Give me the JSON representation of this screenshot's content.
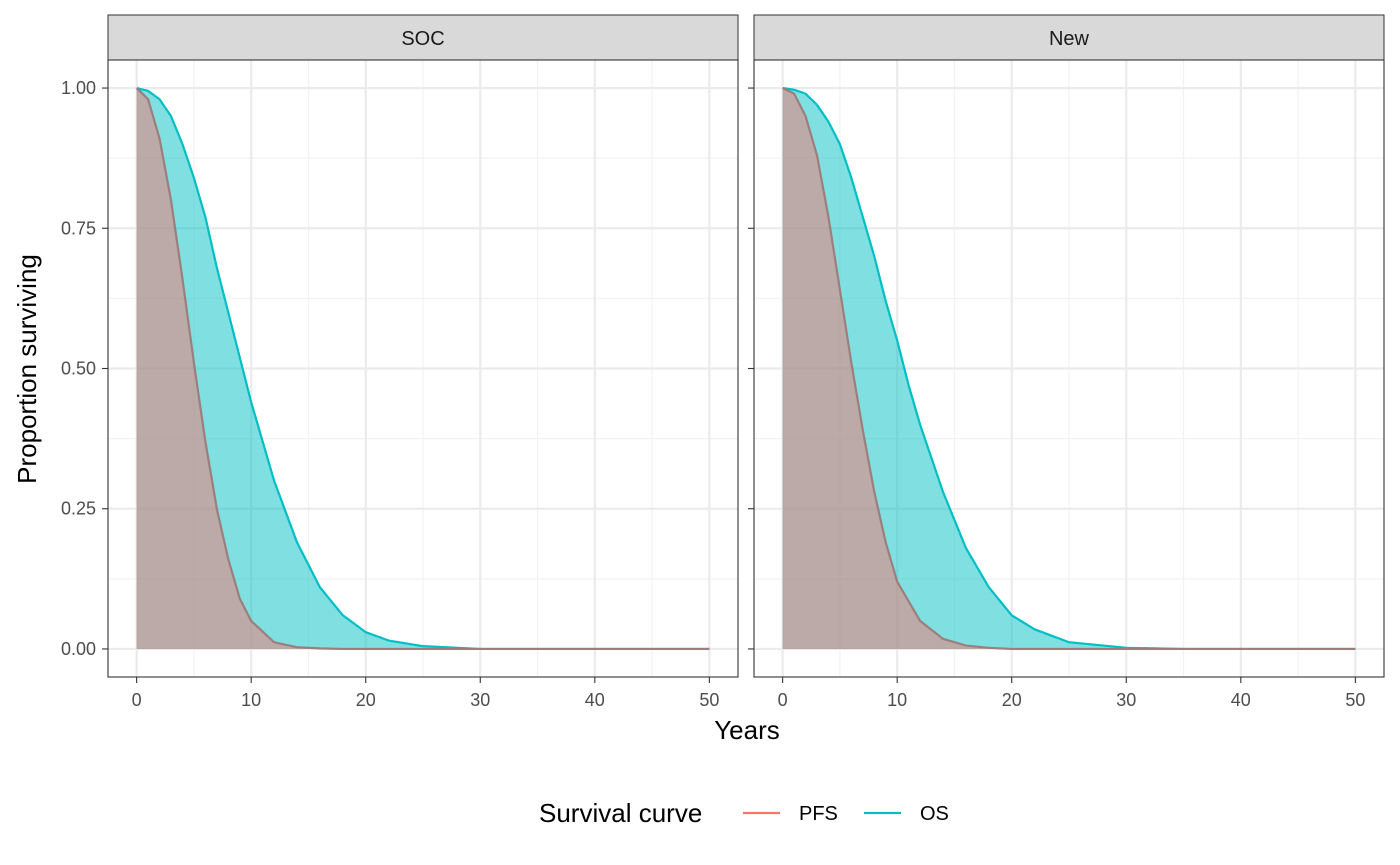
{
  "chart_data": {
    "type": "area",
    "xlabel": "Years",
    "ylabel": "Proportion surviving",
    "xlim": [
      0,
      50
    ],
    "ylim": [
      0,
      1
    ],
    "x_ticks": [
      0,
      10,
      20,
      30,
      40,
      50
    ],
    "y_ticks": [
      0,
      0.25,
      0.5,
      0.75,
      1
    ],
    "x_tick_labels": [
      "0",
      "10",
      "20",
      "30",
      "40",
      "50"
    ],
    "y_tick_labels": [
      "0.00",
      "0.25",
      "0.50",
      "0.75",
      "1.00"
    ],
    "grid": true,
    "legend": {
      "title": "Survival curve",
      "position": "bottom",
      "entries": [
        {
          "label": "PFS",
          "color": "#F8766D"
        },
        {
          "label": "OS",
          "color": "#00BFC4"
        }
      ]
    },
    "facets": [
      {
        "label": "SOC",
        "series": [
          {
            "name": "PFS",
            "color": "#F8766D",
            "x": [
              0,
              1,
              2,
              3,
              4,
              5,
              6,
              7,
              8,
              9,
              10,
              12,
              14,
              16,
              18,
              20,
              25,
              30,
              40,
              50
            ],
            "y": [
              1.0,
              0.98,
              0.91,
              0.8,
              0.66,
              0.51,
              0.37,
              0.25,
              0.16,
              0.09,
              0.05,
              0.012,
              0.003,
              0.001,
              0.0,
              0.0,
              0.0,
              0.0,
              0.0,
              0.0
            ]
          },
          {
            "name": "OS",
            "color": "#00BFC4",
            "x": [
              0,
              1,
              2,
              3,
              4,
              5,
              6,
              7,
              8,
              9,
              10,
              12,
              14,
              16,
              18,
              20,
              22,
              25,
              30,
              40,
              50
            ],
            "y": [
              1.0,
              0.995,
              0.98,
              0.95,
              0.9,
              0.84,
              0.77,
              0.68,
              0.6,
              0.52,
              0.44,
              0.3,
              0.19,
              0.11,
              0.06,
              0.03,
              0.015,
              0.005,
              0.0,
              0.0,
              0.0
            ]
          }
        ]
      },
      {
        "label": "New",
        "series": [
          {
            "name": "PFS",
            "color": "#F8766D",
            "x": [
              0,
              1,
              2,
              3,
              4,
              5,
              6,
              7,
              8,
              9,
              10,
              12,
              14,
              16,
              18,
              20,
              25,
              30,
              40,
              50
            ],
            "y": [
              1.0,
              0.99,
              0.95,
              0.88,
              0.77,
              0.64,
              0.51,
              0.39,
              0.28,
              0.19,
              0.12,
              0.05,
              0.018,
              0.006,
              0.002,
              0.0,
              0.0,
              0.0,
              0.0,
              0.0
            ]
          },
          {
            "name": "OS",
            "color": "#00BFC4",
            "x": [
              0,
              1,
              2,
              3,
              4,
              5,
              6,
              7,
              8,
              9,
              10,
              11,
              12,
              14,
              16,
              18,
              20,
              22,
              25,
              30,
              35,
              40,
              50
            ],
            "y": [
              1.0,
              0.997,
              0.99,
              0.97,
              0.94,
              0.9,
              0.84,
              0.77,
              0.7,
              0.62,
              0.55,
              0.47,
              0.4,
              0.28,
              0.18,
              0.11,
              0.06,
              0.035,
              0.012,
              0.002,
              0.0,
              0.0,
              0.0
            ]
          }
        ]
      }
    ]
  }
}
